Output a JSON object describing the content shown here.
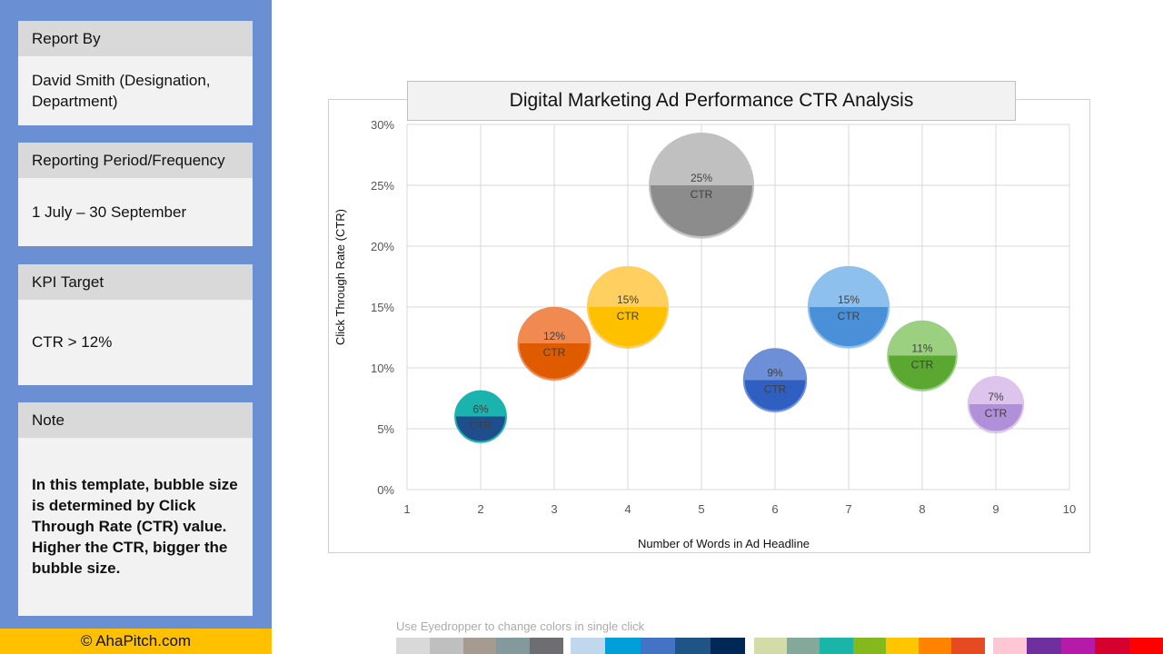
{
  "sidebar": {
    "report_by": {
      "label": "Report By",
      "value": "David Smith (Designation, Department)"
    },
    "period": {
      "label": "Reporting Period/Frequency",
      "value": "1 July – 30 September"
    },
    "kpi": {
      "label": "KPI Target",
      "value": "CTR > 12%"
    },
    "note": {
      "label": "Note",
      "value": "In this template, bubble size is determined by Click Through Rate (CTR) value. Higher the CTR, bigger the bubble size."
    },
    "footer": "© AhaPitch.com"
  },
  "chart_data": {
    "type": "scatter",
    "title": "Digital Marketing Ad Performance CTR Analysis",
    "xlabel": "Number of Words in Ad Headline",
    "ylabel": "Click Through Rate (CTR)",
    "xlim": [
      1,
      10
    ],
    "ylim": [
      0,
      30
    ],
    "xticks": [
      "1",
      "2",
      "3",
      "4",
      "5",
      "6",
      "7",
      "8",
      "9",
      "10"
    ],
    "yticks": [
      "0%",
      "5%",
      "10%",
      "15%",
      "20%",
      "25%",
      "30%"
    ],
    "grid": true,
    "points": [
      {
        "x": 2,
        "y": 6,
        "label": "6%",
        "sub": "CTR",
        "color": "#1bb3ad",
        "color2": "#1f4e8c"
      },
      {
        "x": 3,
        "y": 12,
        "label": "12%",
        "sub": "CTR",
        "color": "#f08a50",
        "color2": "#e05a00"
      },
      {
        "x": 4,
        "y": 15,
        "label": "15%",
        "sub": "CTR",
        "color": "#ffd060",
        "color2": "#ffc000"
      },
      {
        "x": 5,
        "y": 25,
        "label": "25%",
        "sub": "CTR",
        "color": "#c0c0c0",
        "color2": "#8c8c8c"
      },
      {
        "x": 6,
        "y": 9,
        "label": "9%",
        "sub": "CTR",
        "color": "#6c8fd8",
        "color2": "#2f5fc0"
      },
      {
        "x": 7,
        "y": 15,
        "label": "15%",
        "sub": "CTR",
        "color": "#8ec0ee",
        "color2": "#4a90d8"
      },
      {
        "x": 8,
        "y": 11,
        "label": "11%",
        "sub": "CTR",
        "color": "#9ad080",
        "color2": "#5aa832"
      },
      {
        "x": 9,
        "y": 7,
        "label": "7%",
        "sub": "CTR",
        "color": "#dcc4ec",
        "color2": "#b090d8"
      }
    ]
  },
  "palette": {
    "hint": "Use Eyedropper to change colors in single click",
    "groups": [
      [
        "#d9d9d9",
        "#bfbfbf",
        "#a69b91",
        "#84999c",
        "#6e6e72"
      ],
      [
        "#c0d7ee",
        "#009fd9",
        "#4472c4",
        "#1f5586",
        "#002856"
      ],
      [
        "#d3dba8",
        "#84a99a",
        "#1ab5a8",
        "#84b81c",
        "#ffc500",
        "#ff8300",
        "#e54a21"
      ],
      [
        "#ffc6d3",
        "#6f2f9f",
        "#b51aa8",
        "#d6002f",
        "#ff0000"
      ]
    ]
  }
}
